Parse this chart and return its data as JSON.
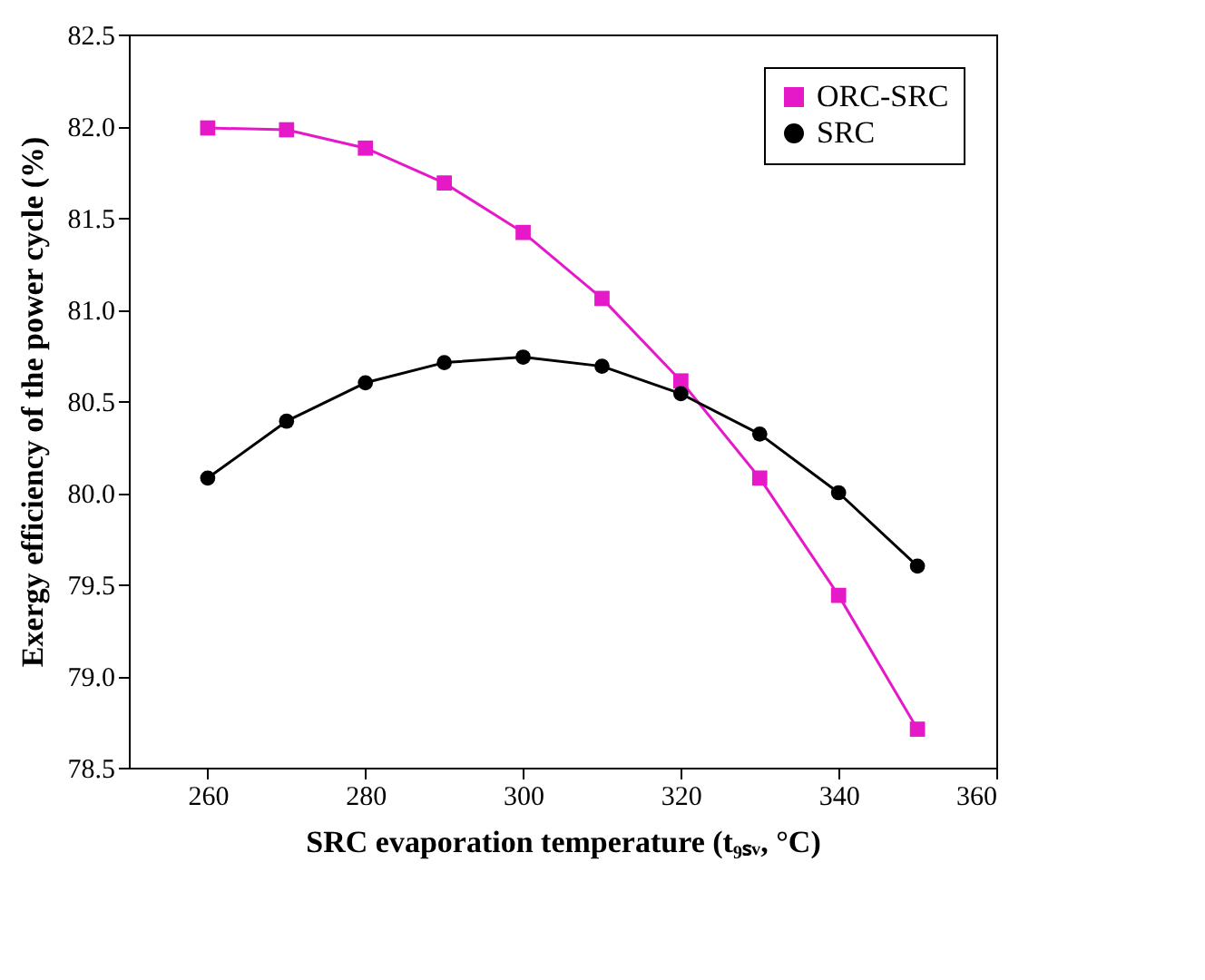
{
  "chart_data": {
    "type": "line",
    "xlabel": "SRC evaporation temperature (t₉ₛᵥ, °C)",
    "ylabel": "Exergy efficiency of the power cycle (%)",
    "x": [
      260,
      270,
      280,
      290,
      300,
      310,
      320,
      330,
      340,
      350
    ],
    "series": [
      {
        "name": "ORC-SRC",
        "color": "#e619c8",
        "marker": "square",
        "values": [
          81.99,
          81.98,
          81.88,
          81.69,
          81.42,
          81.06,
          80.61,
          80.08,
          79.44,
          78.71
        ]
      },
      {
        "name": "SRC",
        "color": "#000000",
        "marker": "circle",
        "values": [
          80.08,
          80.39,
          80.6,
          80.71,
          80.74,
          80.69,
          80.54,
          80.32,
          80.0,
          79.6
        ]
      }
    ],
    "xlim": [
      250,
      360
    ],
    "xticks": [
      260,
      280,
      300,
      320,
      340,
      360
    ],
    "ylim": [
      78.5,
      82.5
    ],
    "yticks": [
      78.5,
      {
        "value": 79,
        "label": "79.0"
      },
      79.5,
      {
        "value": 80,
        "label": "80.0"
      },
      80.5,
      {
        "value": 81,
        "label": "81.0"
      },
      81.5,
      {
        "value": 82,
        "label": "82.0"
      },
      82.5
    ],
    "grid": false,
    "legend": "top right",
    "line_style": "solid"
  }
}
